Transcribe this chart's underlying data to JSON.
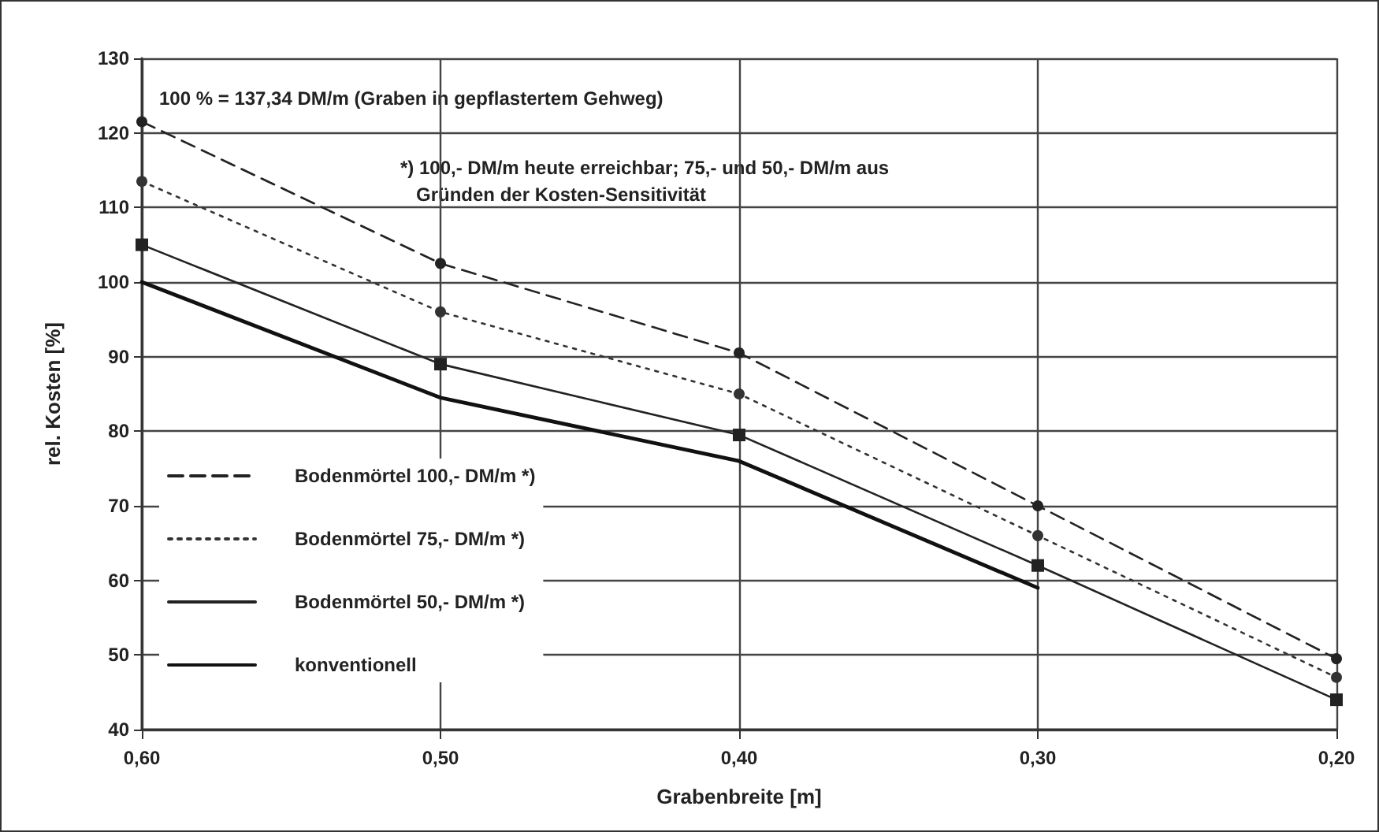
{
  "chart_data": {
    "type": "line",
    "xlabel": "Grabenbreite [m]",
    "ylabel": "rel. Kosten [%]",
    "x": [
      0.6,
      0.5,
      0.4,
      0.3,
      0.2
    ],
    "series": [
      {
        "name": "Bodenmörtel 100,- DM/m *)",
        "color": "#222222",
        "line_style": "dashed",
        "marker": "circle",
        "values": [
          121.5,
          102.5,
          90.5,
          70,
          49.5
        ]
      },
      {
        "name": "Bodenmörtel 75,- DM/m *)",
        "color": "#333333",
        "line_style": "dotted",
        "marker": "circle",
        "values": [
          113.5,
          96,
          85,
          66,
          47
        ]
      },
      {
        "name": "Bodenmörtel 50,- DM/m *)",
        "color": "#222222",
        "line_style": "solid",
        "marker": "square",
        "values": [
          105,
          89,
          79.5,
          62,
          44
        ]
      },
      {
        "name": "konventionell",
        "color": "#111111",
        "line_style": "solid",
        "marker": "none",
        "values": [
          100,
          84.5,
          76,
          59,
          null
        ]
      }
    ],
    "xlim": [
      0.6,
      0.2
    ],
    "xticks": [
      {
        "value": 0.6,
        "label": "0,60"
      },
      {
        "value": 0.5,
        "label": "0,50"
      },
      {
        "value": 0.4,
        "label": "0,40"
      },
      {
        "value": 0.3,
        "label": "0,30"
      },
      {
        "value": 0.2,
        "label": "0,20"
      }
    ],
    "ylim": [
      40,
      130
    ],
    "yticks": [
      40,
      50,
      60,
      70,
      80,
      90,
      100,
      110,
      120,
      130
    ],
    "grid": true,
    "legend": "left",
    "annotations": [
      "100 % = 137,34 DM/m (Graben in gepflastertem Gehweg)",
      "*) 100,- DM/m heute erreichbar; 75,- und 50,- DM/m aus\n   Gründen der Kosten-Sensitivität"
    ]
  }
}
